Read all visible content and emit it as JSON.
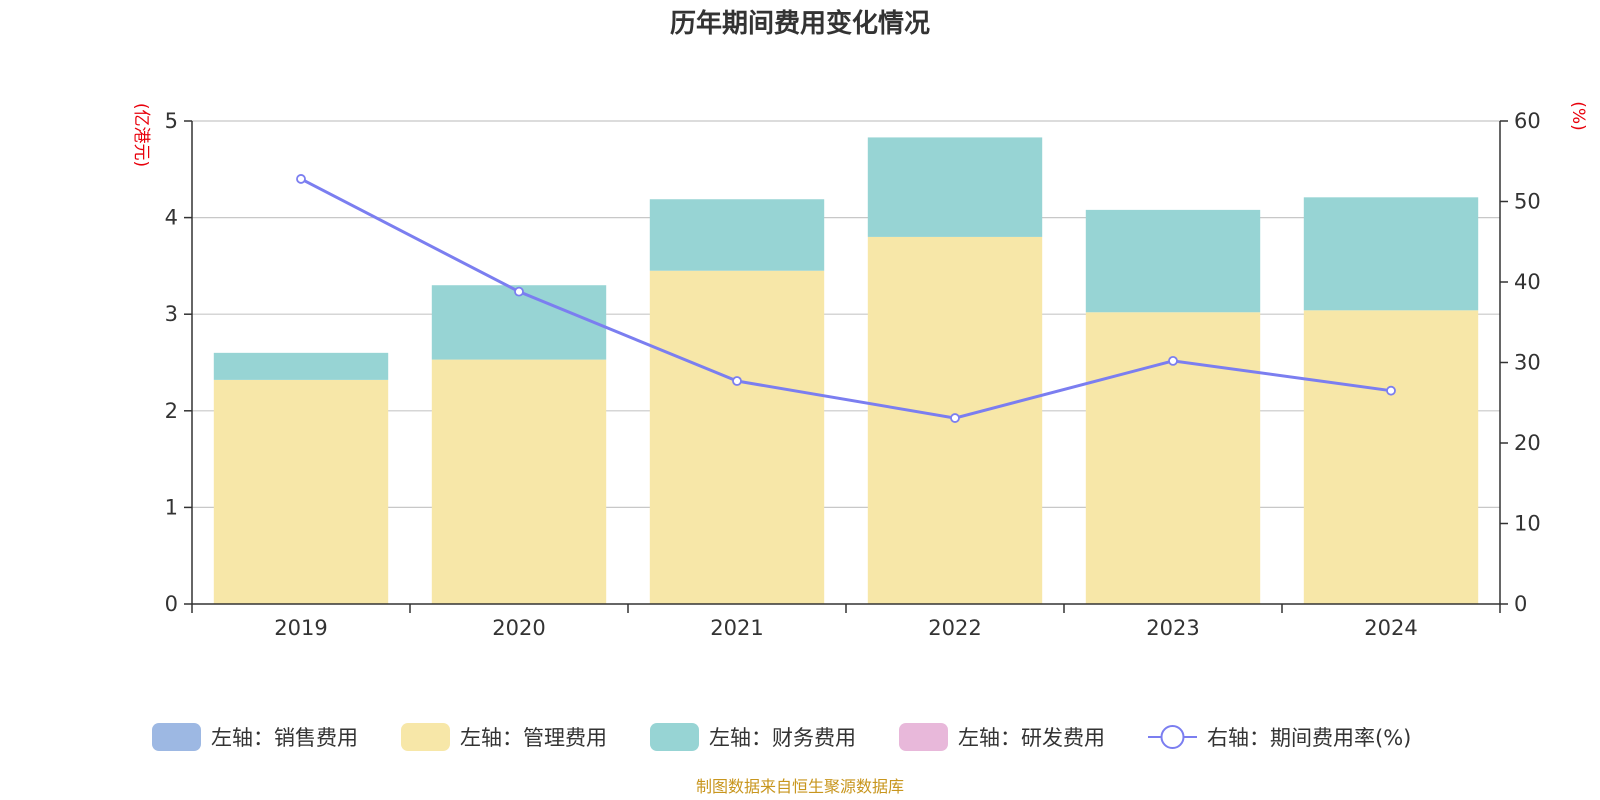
{
  "chart_data": {
    "type": "bar",
    "title": "历年期间费用变化情况",
    "categories": [
      "2019",
      "2020",
      "2021",
      "2022",
      "2023",
      "2024"
    ],
    "left_axis": {
      "unit": "(亿港元)",
      "ylim": [
        0,
        5
      ],
      "ticks": [
        "0",
        "1",
        "2",
        "3",
        "4",
        "5"
      ]
    },
    "right_axis": {
      "unit": "(%)",
      "ylim": [
        0,
        60
      ],
      "ticks": [
        "0",
        "10",
        "20",
        "30",
        "40",
        "50",
        "60"
      ]
    },
    "stacked": true,
    "series": [
      {
        "name": "左轴：销售费用",
        "axis": "left",
        "type": "bar",
        "color": "#9db8e3",
        "values": [
          0,
          0,
          0,
          0,
          0,
          0
        ]
      },
      {
        "name": "左轴：管理费用",
        "axis": "left",
        "type": "bar",
        "color": "#f7e7a8",
        "values": [
          2.32,
          2.53,
          3.45,
          3.8,
          3.02,
          3.04
        ]
      },
      {
        "name": "左轴：财务费用",
        "axis": "left",
        "type": "bar",
        "color": "#97d4d4",
        "values": [
          0.28,
          0.77,
          0.74,
          1.03,
          1.06,
          1.17
        ]
      },
      {
        "name": "左轴：研发费用",
        "axis": "left",
        "type": "bar",
        "color": "#e8b8da",
        "values": [
          0,
          0,
          0,
          0,
          0,
          0
        ]
      },
      {
        "name": "右轴：期间费用率(%)",
        "axis": "right",
        "type": "line",
        "color": "#7b7ef0",
        "values": [
          52.8,
          38.8,
          27.7,
          23.1,
          30.2,
          26.5
        ]
      }
    ],
    "grid": true,
    "legend_position": "bottom"
  },
  "footer": {
    "source": "制图数据来自恒生聚源数据库"
  }
}
